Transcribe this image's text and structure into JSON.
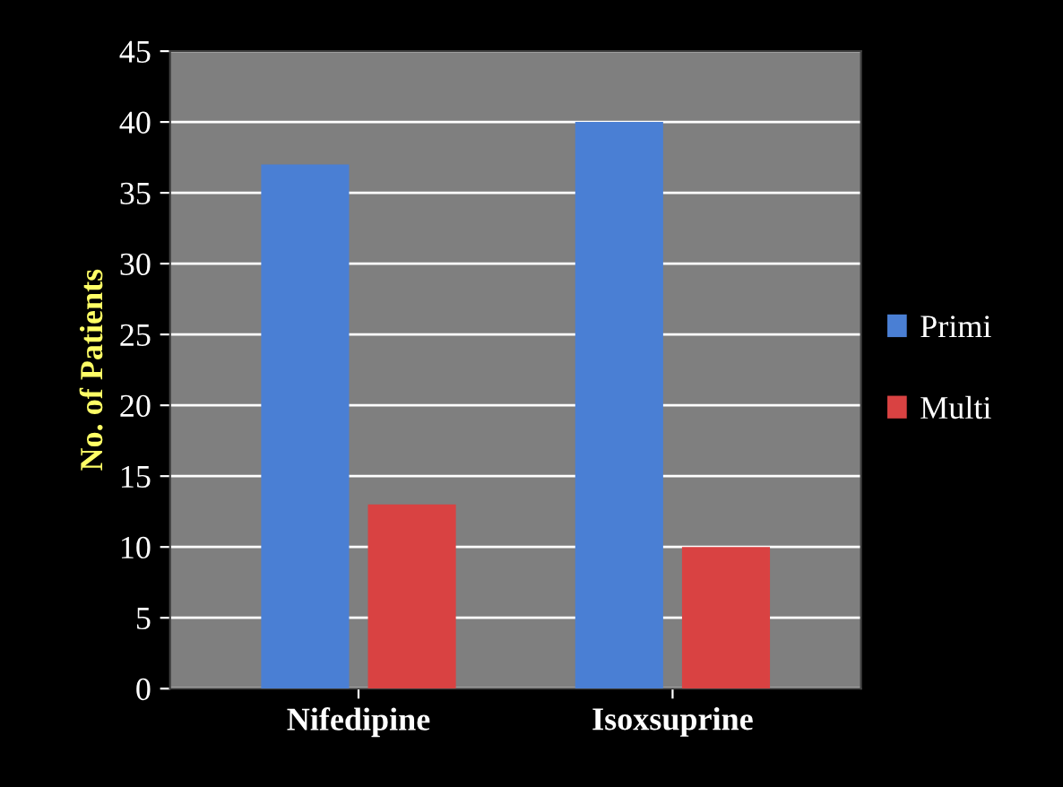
{
  "chart_data": {
    "type": "bar",
    "ylabel": "No. of Patients",
    "categories": [
      "Nifedipine",
      "Isoxsuprine"
    ],
    "series": [
      {
        "name": "Primi",
        "color": "#4a7fd4",
        "values": [
          37,
          40
        ]
      },
      {
        "name": "Multi",
        "color": "#d94242",
        "values": [
          13,
          10
        ]
      }
    ],
    "ylim": [
      0,
      45
    ],
    "yticks": [
      0,
      5,
      10,
      15,
      20,
      25,
      30,
      35,
      40,
      45
    ],
    "grid": "y",
    "legend": "right"
  }
}
